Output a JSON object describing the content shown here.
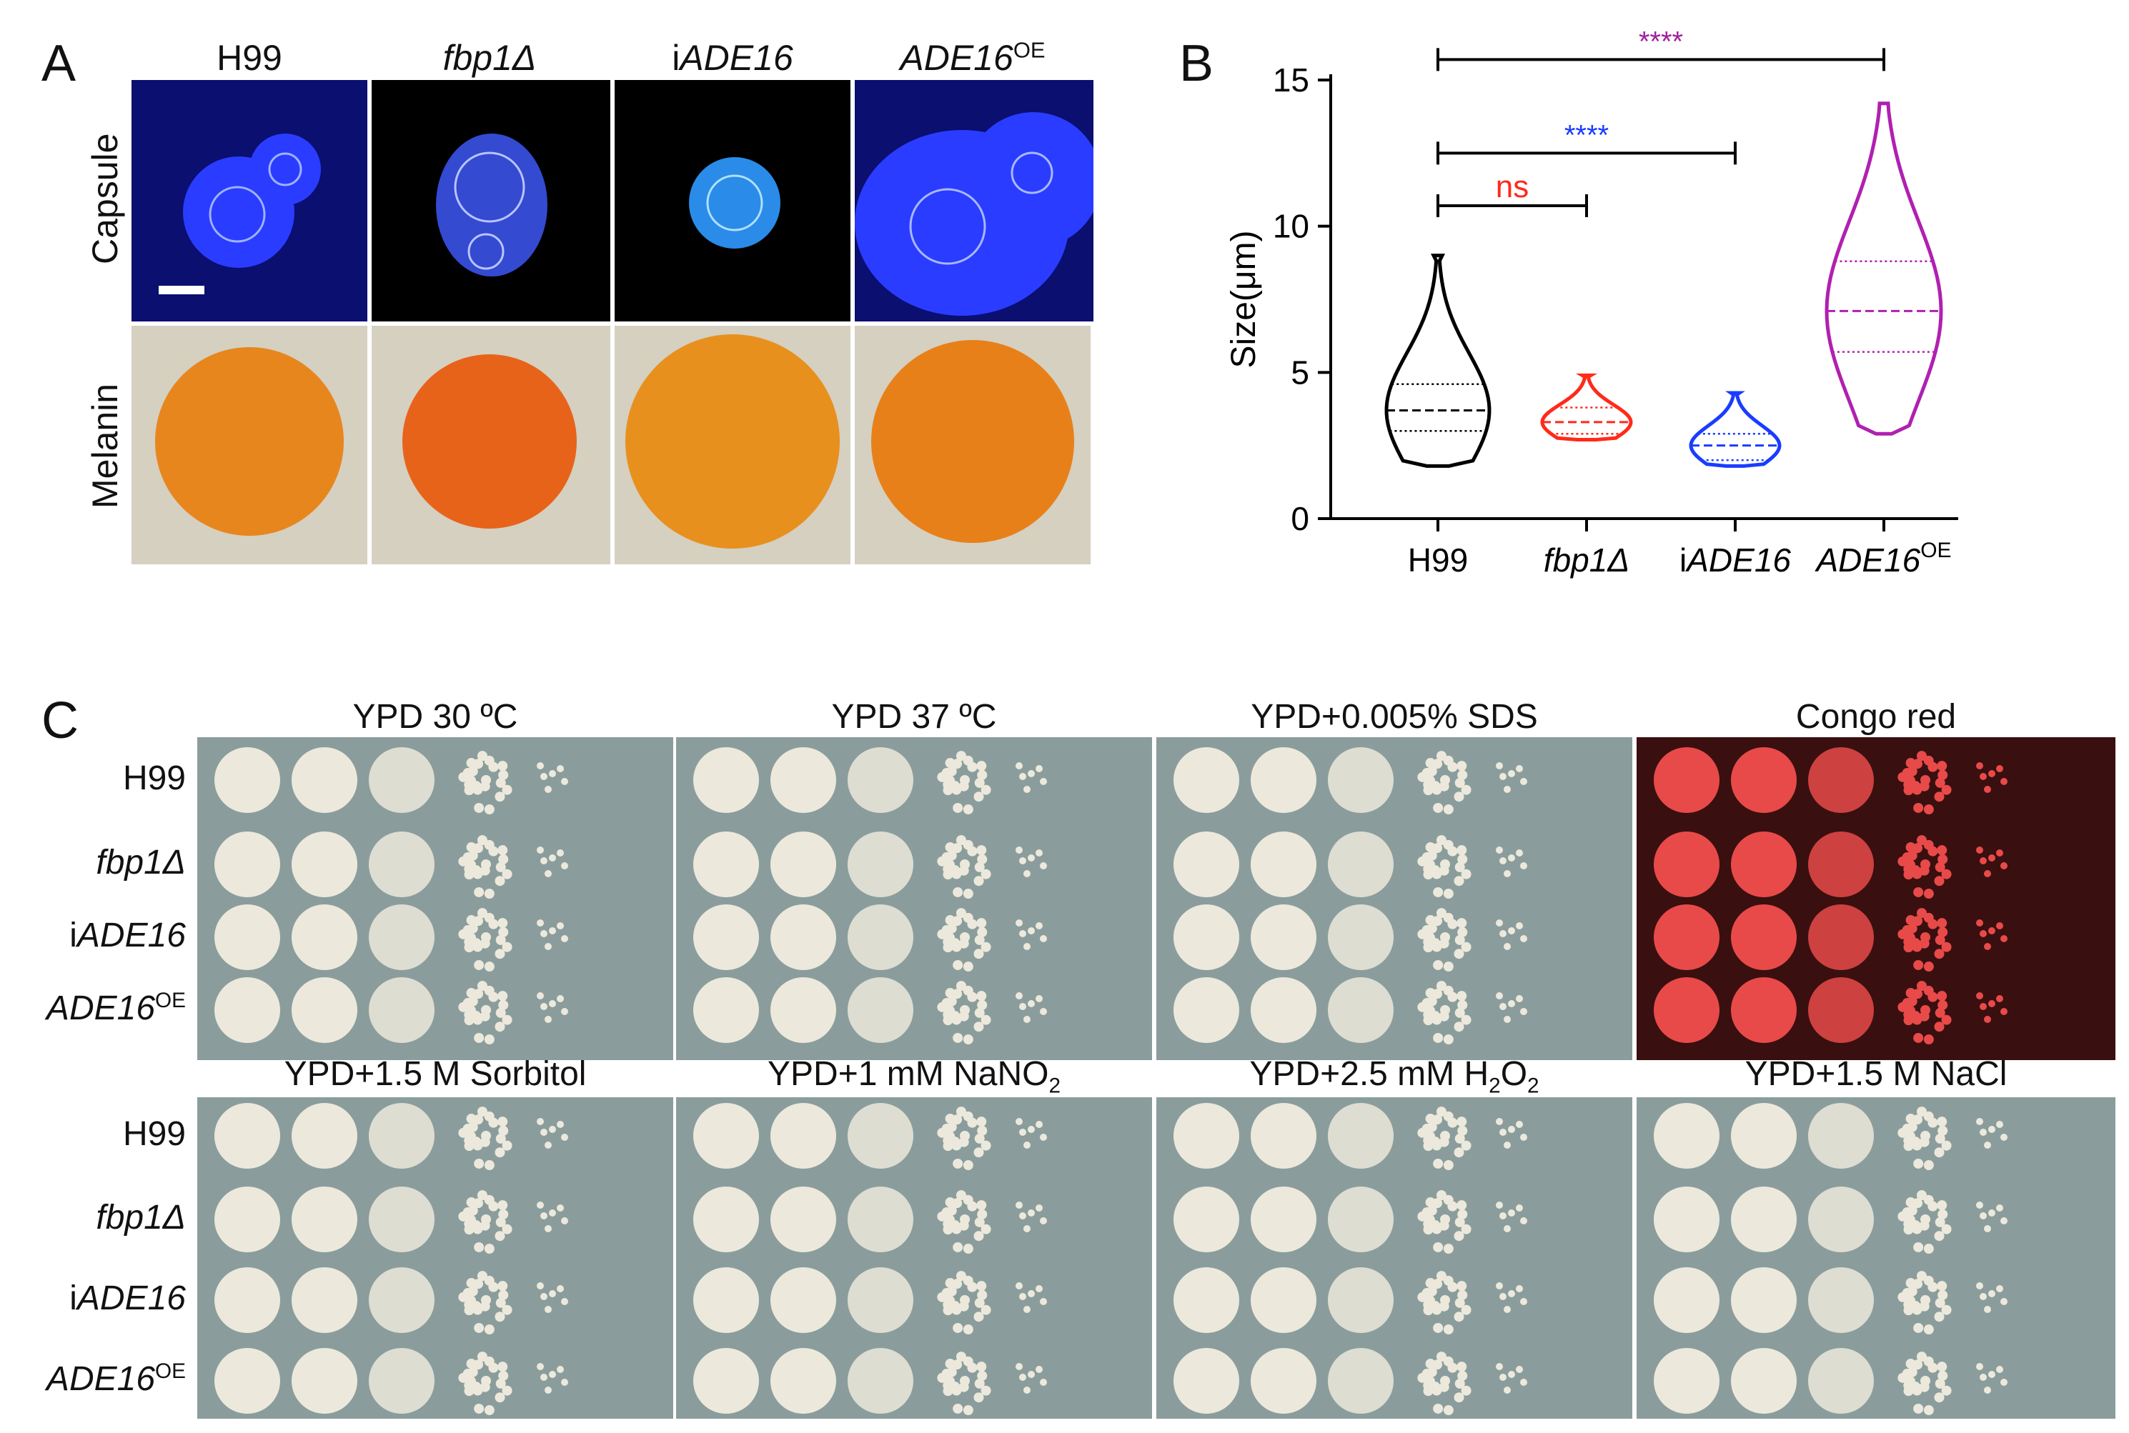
{
  "figure": {
    "panel_letters": {
      "a": "A",
      "b": "B",
      "c": "C"
    },
    "panel_a": {
      "columns": [
        {
          "label": "H99",
          "italic": false,
          "prefix": "",
          "sup": ""
        },
        {
          "label": "fbp1Δ",
          "italic": true,
          "prefix": "",
          "sup": ""
        },
        {
          "label": "ADE16",
          "italic": true,
          "prefix": "i",
          "sup": ""
        },
        {
          "label": "ADE16",
          "italic": true,
          "prefix": "",
          "sup": "OE"
        }
      ],
      "row_labels": [
        "Capsule",
        "Melanin"
      ],
      "colors": {
        "capsule_blue": "#1a2cff",
        "melanin_orange": "#e8801a",
        "background_grey": "#d5d0c0"
      }
    },
    "panel_c": {
      "conditions_top": [
        "YPD 30 ºC",
        "YPD 37 ºC",
        "YPD+0.005% SDS",
        "Congo red"
      ],
      "conditions_bottom": [
        {
          "text": "YPD+1.5 M Sorbitol",
          "sub": ""
        },
        {
          "text": "YPD+1 mM NaNO",
          "sub": "2"
        },
        {
          "text": "YPD+2.5 mM H",
          "sub": "2",
          "tail": "O",
          "sub2": "2"
        },
        {
          "text": "YPD+1.5 M NaCl",
          "sub": ""
        }
      ],
      "strains": [
        {
          "label": "H99",
          "italic": false,
          "prefix": "",
          "sup": ""
        },
        {
          "label": "fbp1Δ",
          "italic": true,
          "prefix": "",
          "sup": ""
        },
        {
          "label": "ADE16",
          "italic": true,
          "prefix": "i",
          "sup": ""
        },
        {
          "label": "ADE16",
          "italic": true,
          "prefix": "",
          "sup": "OE"
        }
      ],
      "colors": {
        "plate": "#8a9d9c",
        "congo": "#3a0f0f",
        "colony": "#ece9dc",
        "congo_colony": "#e84a4a"
      }
    }
  },
  "chart_data": {
    "type": "violin",
    "ylabel": "Size(μm)",
    "ylim": [
      0,
      15
    ],
    "yticks": [
      0,
      5,
      10,
      15
    ],
    "categories": [
      {
        "label": "H99",
        "prefix": "",
        "italic": false,
        "sup": ""
      },
      {
        "label": "fbp1Δ",
        "prefix": "",
        "italic": true,
        "sup": ""
      },
      {
        "label": "ADE16",
        "prefix": "i",
        "italic": true,
        "sup": ""
      },
      {
        "label": "ADE16",
        "prefix": "",
        "italic": true,
        "sup": "OE"
      }
    ],
    "series": [
      {
        "category": "H99",
        "color": "#000000",
        "min": 1.8,
        "max": 9.0,
        "q1": 3.0,
        "median": 3.7,
        "q3": 4.6
      },
      {
        "category": "fbp1Δ",
        "color": "#ff2a1a",
        "min": 2.7,
        "max": 4.9,
        "q1": 2.9,
        "median": 3.3,
        "q3": 3.8
      },
      {
        "category": "iADE16",
        "color": "#1a3cff",
        "min": 1.8,
        "max": 4.3,
        "q1": 2.0,
        "median": 2.5,
        "q3": 2.9
      },
      {
        "category": "ADE16OE",
        "color": "#b020b0",
        "min": 2.9,
        "max": 14.2,
        "q1": 5.7,
        "median": 7.1,
        "q3": 8.8
      }
    ],
    "comparisons": [
      {
        "from": 0,
        "to": 1,
        "label": "ns",
        "color": "#ff2a1a",
        "y": 10.7
      },
      {
        "from": 0,
        "to": 2,
        "label": "****",
        "color": "#1a3cff",
        "y": 12.5
      },
      {
        "from": 0,
        "to": 3,
        "label": "****",
        "color": "#a020a0",
        "y": 15.7
      }
    ]
  }
}
